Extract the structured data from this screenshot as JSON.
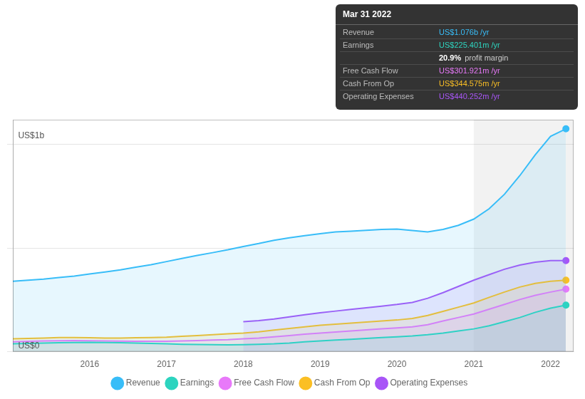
{
  "chart_data": {
    "type": "area",
    "x": [
      2015.0,
      2015.2,
      2015.4,
      2015.6,
      2015.8,
      2016.0,
      2016.2,
      2016.4,
      2016.6,
      2016.8,
      2017.0,
      2017.2,
      2017.4,
      2017.6,
      2017.8,
      2018.0,
      2018.2,
      2018.4,
      2018.6,
      2018.8,
      2019.0,
      2019.2,
      2019.4,
      2019.6,
      2019.8,
      2020.0,
      2020.2,
      2020.4,
      2020.6,
      2020.8,
      2021.0,
      2021.2,
      2021.4,
      2021.6,
      2021.8,
      2022.0,
      2022.2
    ],
    "series": [
      {
        "name": "Revenue",
        "color": "#38bdf8",
        "values": [
          0.34,
          0.345,
          0.35,
          0.358,
          0.365,
          0.375,
          0.385,
          0.395,
          0.408,
          0.42,
          0.435,
          0.45,
          0.465,
          0.478,
          0.492,
          0.508,
          0.522,
          0.538,
          0.55,
          0.56,
          0.57,
          0.578,
          0.582,
          0.586,
          0.59,
          0.592,
          0.585,
          0.578,
          0.59,
          0.61,
          0.64,
          0.69,
          0.76,
          0.85,
          0.95,
          1.04,
          1.076
        ]
      },
      {
        "name": "Earnings",
        "color": "#2dd4bf",
        "values": [
          0.038,
          0.04,
          0.042,
          0.043,
          0.044,
          0.045,
          0.044,
          0.043,
          0.042,
          0.04,
          0.038,
          0.036,
          0.035,
          0.034,
          0.033,
          0.034,
          0.036,
          0.038,
          0.042,
          0.048,
          0.052,
          0.056,
          0.06,
          0.064,
          0.068,
          0.072,
          0.076,
          0.082,
          0.09,
          0.1,
          0.11,
          0.125,
          0.145,
          0.165,
          0.19,
          0.21,
          0.225
        ]
      },
      {
        "name": "Free Cash Flow",
        "color": "#e879f9",
        "values": [
          0.048,
          0.05,
          0.052,
          0.053,
          0.054,
          0.053,
          0.052,
          0.051,
          0.05,
          0.05,
          0.05,
          0.052,
          0.054,
          0.056,
          0.058,
          0.062,
          0.066,
          0.072,
          0.078,
          0.085,
          0.09,
          0.095,
          0.1,
          0.105,
          0.11,
          0.115,
          0.12,
          0.13,
          0.148,
          0.165,
          0.182,
          0.205,
          0.228,
          0.252,
          0.272,
          0.288,
          0.302
        ]
      },
      {
        "name": "Cash From Op",
        "color": "#fbbf24",
        "values": [
          0.062,
          0.064,
          0.066,
          0.068,
          0.068,
          0.067,
          0.066,
          0.066,
          0.067,
          0.068,
          0.07,
          0.074,
          0.078,
          0.082,
          0.086,
          0.09,
          0.096,
          0.104,
          0.112,
          0.12,
          0.128,
          0.133,
          0.138,
          0.143,
          0.148,
          0.153,
          0.16,
          0.175,
          0.195,
          0.215,
          0.235,
          0.262,
          0.288,
          0.312,
          0.33,
          0.34,
          0.345
        ]
      },
      {
        "name": "Operating Expenses",
        "color": "#a855f7",
        "values": [
          null,
          null,
          null,
          null,
          null,
          null,
          null,
          null,
          null,
          null,
          null,
          null,
          null,
          null,
          null,
          0.145,
          0.15,
          0.158,
          0.168,
          0.178,
          0.188,
          0.196,
          0.204,
          0.212,
          0.22,
          0.228,
          0.238,
          0.258,
          0.285,
          0.315,
          0.345,
          0.372,
          0.398,
          0.418,
          0.432,
          0.44,
          0.44
        ]
      }
    ],
    "xlim": [
      2015.0,
      2022.3
    ],
    "xticks": [
      2016,
      2017,
      2018,
      2019,
      2020,
      2021,
      2022
    ],
    "ylim": [
      0,
      1.12
    ],
    "yticks": [
      0,
      0.5,
      1
    ],
    "tick_labels": "x",
    "grid": true,
    "legend": "bottom",
    "highlight": [
      2021.0,
      2022.3
    ],
    "annotations": [
      {
        "text": "US$1b",
        "x": 2015.05,
        "y": 1.02
      },
      {
        "text": "US$0",
        "x": 2015.05,
        "y": 0.005
      }
    ],
    "tooltip": {
      "title": "Mar 31 2022",
      "rows": [
        {
          "label": "Revenue",
          "value": "US$1.076b /yr",
          "color": "#38bdf8"
        },
        {
          "label": "Earnings",
          "value": "US$225.401m /yr",
          "color": "#2dd4bf"
        },
        {
          "value": "20.9%",
          "text": "profit margin"
        },
        {
          "label": "Free Cash Flow",
          "value": "US$301.921m /yr",
          "color": "#e879f9"
        },
        {
          "label": "Cash From Op",
          "value": "US$344.575m /yr",
          "color": "#fbbf24"
        },
        {
          "label": "Operating Expenses",
          "value": "US$440.252m /yr",
          "color": "#a855f7"
        }
      ]
    }
  }
}
